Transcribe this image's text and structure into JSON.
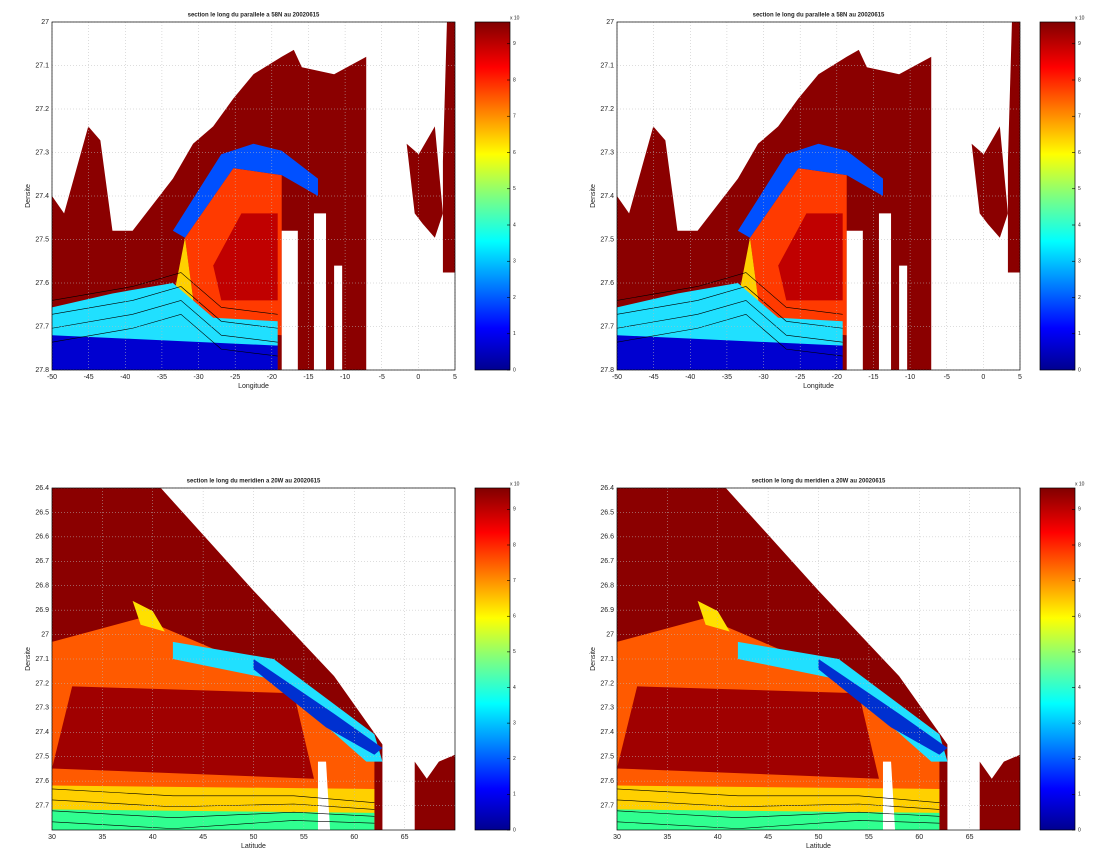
{
  "chart_data": [
    {
      "type": "heatmap",
      "title": "section le long du parallele a 58N au 20020615",
      "xlabel": "Longitude",
      "ylabel": "Densite",
      "xlim": [
        -50,
        5
      ],
      "xticks": [
        -50,
        -45,
        -40,
        -35,
        -30,
        -25,
        -20,
        -15,
        -10,
        -5,
        0,
        5
      ],
      "ylim": [
        27,
        27.8
      ],
      "yticks": [
        27,
        27.1,
        27.2,
        27.3,
        27.4,
        27.5,
        27.6,
        27.7,
        27.8
      ],
      "y_reversed": true,
      "grid": true,
      "colorbar": {
        "lim": [
          0,
          9.6
        ],
        "ticks": [
          0,
          1,
          2,
          3,
          4,
          5,
          6,
          7,
          8,
          9
        ],
        "label": "x 10",
        "colormap": "jet"
      }
    },
    {
      "type": "heatmap",
      "title": "section le long du parallele a 58N au 20020615",
      "xlabel": "Longitude",
      "ylabel": "Densite",
      "xlim": [
        -50,
        5
      ],
      "xticks": [
        -50,
        -45,
        -40,
        -35,
        -30,
        -25,
        -20,
        -15,
        -10,
        -5,
        0,
        5
      ],
      "ylim": [
        27,
        27.8
      ],
      "yticks": [
        27,
        27.1,
        27.2,
        27.3,
        27.4,
        27.5,
        27.6,
        27.7,
        27.8
      ],
      "y_reversed": true,
      "grid": true,
      "colorbar": {
        "lim": [
          0,
          9.6
        ],
        "ticks": [
          0,
          1,
          2,
          3,
          4,
          5,
          6,
          7,
          8,
          9
        ],
        "label": "x 10",
        "colormap": "jet"
      }
    },
    {
      "type": "heatmap",
      "title": "section le long du meridien a 20W au 20020615",
      "xlabel": "Latitude",
      "ylabel": "Densite",
      "xlim": [
        30,
        70
      ],
      "xticks": [
        30,
        35,
        40,
        45,
        50,
        55,
        60,
        65
      ],
      "ylim": [
        26.4,
        27.8
      ],
      "yticks": [
        26.4,
        26.5,
        26.6,
        26.7,
        26.8,
        26.9,
        27,
        27.1,
        27.2,
        27.3,
        27.4,
        27.5,
        27.6,
        27.7
      ],
      "y_reversed": true,
      "grid": true,
      "colorbar": {
        "lim": [
          0,
          9.6
        ],
        "ticks": [
          0,
          1,
          2,
          3,
          4,
          5,
          6,
          7,
          8,
          9
        ],
        "label": "x 10",
        "colormap": "jet"
      }
    },
    {
      "type": "heatmap",
      "title": "section le long du meridien a 20W au 20020615",
      "xlabel": "Latitude",
      "ylabel": "Densite",
      "xlim": [
        30,
        70
      ],
      "xticks": [
        30,
        35,
        40,
        45,
        50,
        55,
        60,
        65
      ],
      "ylim": [
        26.4,
        27.8
      ],
      "yticks": [
        26.4,
        26.5,
        26.6,
        26.7,
        26.8,
        26.9,
        27,
        27.1,
        27.2,
        27.3,
        27.4,
        27.5,
        27.6,
        27.7
      ],
      "y_reversed": true,
      "grid": true,
      "colorbar": {
        "lim": [
          0,
          9.6
        ],
        "ticks": [
          0,
          1,
          2,
          3,
          4,
          5,
          6,
          7,
          8,
          9
        ],
        "label": "x 10",
        "colormap": "jet"
      }
    }
  ]
}
